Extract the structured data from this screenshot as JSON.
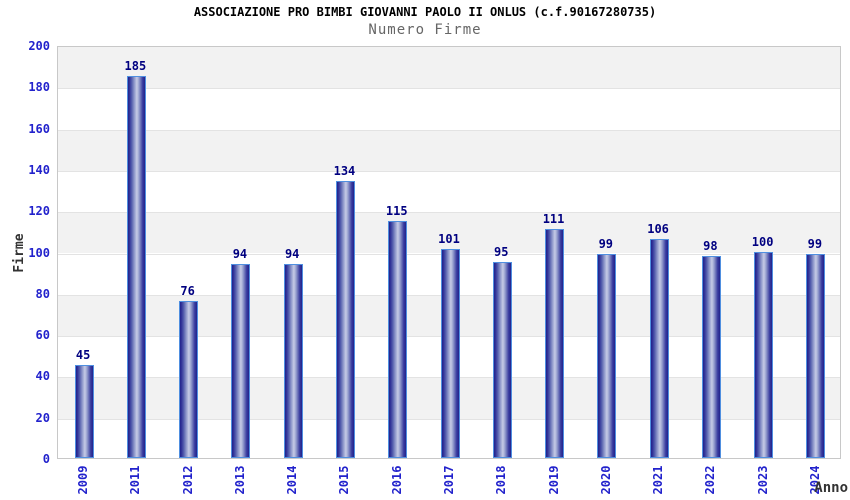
{
  "chart_data": {
    "type": "bar",
    "title": "ASSOCIAZIONE PRO BIMBI GIOVANNI PAOLO II ONLUS (c.f.90167280735)",
    "subtitle": "Numero Firme",
    "xlabel": "Anno",
    "ylabel": "Firme",
    "categories": [
      "2009",
      "2011",
      "2012",
      "2013",
      "2014",
      "2015",
      "2016",
      "2017",
      "2018",
      "2019",
      "2020",
      "2021",
      "2022",
      "2023",
      "2024"
    ],
    "values": [
      45,
      185,
      76,
      94,
      94,
      134,
      115,
      101,
      95,
      111,
      99,
      106,
      98,
      100,
      99
    ],
    "ylim": [
      0,
      200
    ],
    "ytick_step": 20,
    "grid": "horizontal gridlines with alternating gray/white bands",
    "legend": "none",
    "colors": {
      "bar_edge": "#22228c",
      "bar_center": "#c6cbe6",
      "bar_border": "#4f8fe0",
      "tick_label": "#2222cc",
      "value_label": "#000080",
      "band_gray": "#f2f2f2",
      "plot_border": "#c8c8c8",
      "title": "#000000",
      "subtitle": "#666666",
      "axis_title": "#333333"
    }
  }
}
